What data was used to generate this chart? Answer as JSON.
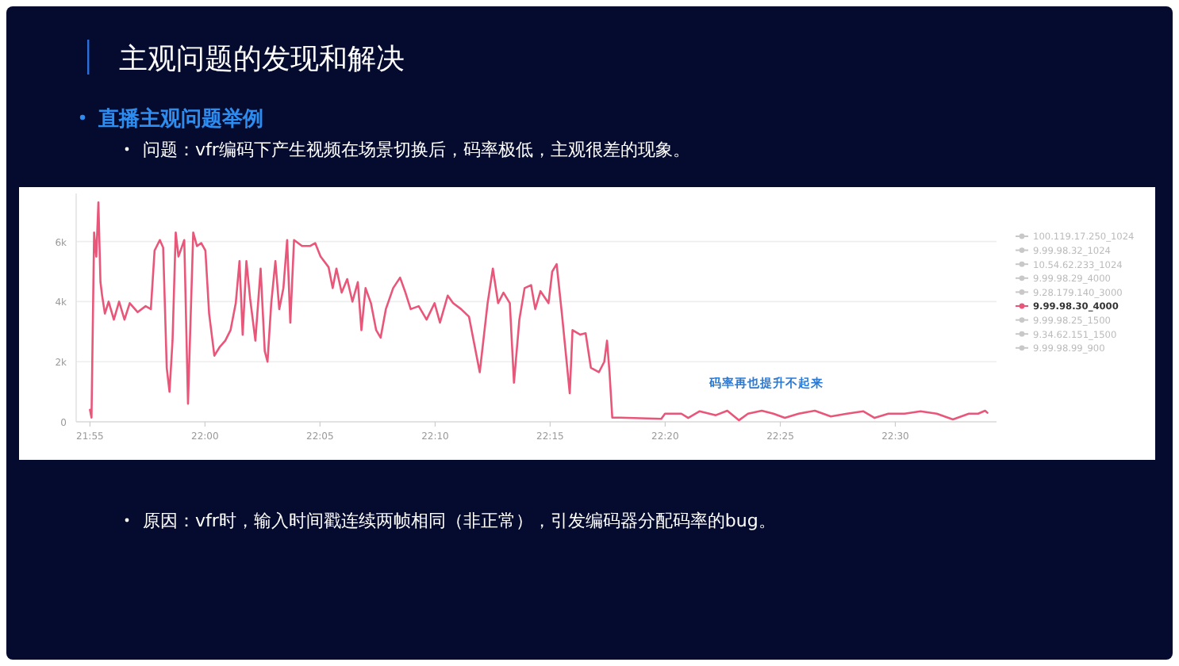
{
  "chart_data": {
    "type": "line",
    "title": "主观问题的发现和解决",
    "subtitle": "直播主观问题举例",
    "annotations": [
      "问题：vfr编码下产生视频在场景切换后，码率极低，主观很差的现象。",
      "码率再也提升不起来",
      "原因：vfr时，输入时间戳连续两帧相同（非正常），引发编码器分配码率的bug。"
    ],
    "x": [
      21.9167,
      21.9178,
      21.9197,
      21.9213,
      21.9228,
      21.9243,
      21.9255,
      21.9275,
      21.9302,
      21.934,
      21.9378,
      21.9417,
      21.9455,
      21.9512,
      21.957,
      21.9608,
      21.9635,
      21.9673,
      21.9697,
      21.9723,
      21.9743,
      21.9765,
      21.9788,
      21.9808,
      21.985,
      21.9877,
      21.9915,
      21.9942,
      21.9973,
      22.0003,
      22.003,
      22.0068,
      22.0108,
      22.0147,
      22.0185,
      22.0223,
      22.025,
      22.0273,
      22.03,
      22.0327,
      22.0365,
      22.0403,
      22.0433,
      22.0453,
      22.048,
      22.051,
      22.0538,
      22.0568,
      22.0595,
      22.0618,
      22.0645,
      22.0703,
      22.076,
      22.0798,
      22.0837,
      22.0895,
      22.0925,
      22.0952,
      22.099,
      22.103,
      22.1068,
      22.1107,
      22.1133,
      22.1163,
      22.1202,
      22.124,
      22.1272,
      22.131,
      22.1363,
      22.1413,
      22.1452,
      22.149,
      22.1548,
      22.1605,
      22.1663,
      22.1702,
      22.1758,
      22.1797,
      22.1855,
      22.1912,
      22.199,
      22.2047,
      22.2085,
      22.2123,
      22.2162,
      22.2208,
      22.2238,
      22.2277,
      22.2315,
      22.2362,
      22.2392,
      22.243,
      22.2488,
      22.2515,
      22.2547,
      22.2585,
      22.2642,
      22.2662,
      22.2718,
      22.2757,
      22.2795,
      22.2853,
      22.2892,
      22.2912,
      22.293,
      22.295,
      22.3007,
      22.3305,
      22.3332,
      22.345,
      22.35,
      22.3583,
      22.37,
      22.3783,
      22.3867,
      22.3933,
      22.4033,
      22.4117,
      22.42,
      22.43,
      22.4417,
      22.4533,
      22.465,
      22.4767,
      22.485,
      22.495,
      22.5067,
      22.5183,
      22.53,
      22.5417,
      22.5533,
      22.56,
      22.565,
      22.5667
    ],
    "series": [
      {
        "name": "100.119.17.250_1024",
        "color": "#c8c8c8",
        "values": [
          null,
          null,
          null,
          null,
          null,
          null,
          null,
          null,
          null,
          null,
          null,
          null,
          null,
          null,
          null,
          null,
          null,
          null,
          null,
          null,
          null,
          null,
          null,
          null,
          null,
          null,
          null,
          null,
          null,
          null,
          null,
          null,
          null,
          null,
          null,
          null,
          null,
          null,
          null,
          null,
          null,
          null,
          null,
          null,
          null,
          null,
          null,
          null,
          null,
          null,
          null,
          null,
          null,
          null,
          null,
          null,
          null,
          null,
          null,
          null,
          null,
          null,
          null,
          null,
          null,
          null,
          null,
          null,
          null,
          null,
          null,
          null,
          null,
          null,
          null,
          null,
          null,
          null,
          null,
          null,
          null,
          null,
          null,
          null,
          null,
          null,
          null,
          null,
          null,
          null,
          null,
          null,
          null,
          null,
          null,
          null,
          null,
          null,
          null,
          null,
          null,
          null,
          null,
          null,
          null,
          null,
          null,
          null,
          null,
          null,
          null,
          null,
          null,
          null,
          null,
          null,
          null,
          null,
          null,
          null,
          null,
          null,
          null,
          null,
          null,
          null,
          null,
          null,
          null,
          null,
          null,
          null,
          null,
          null
        ]
      },
      {
        "name": "9.99.98.32_1024",
        "color": "#c8c8c8",
        "values": [
          null,
          null,
          null,
          null,
          null,
          null,
          null,
          null,
          null,
          null,
          null,
          null,
          null,
          null,
          null,
          null,
          null,
          null,
          null,
          null,
          null,
          null,
          null,
          null,
          null,
          null,
          null,
          null,
          null,
          null,
          null,
          null,
          null,
          null,
          null,
          null,
          null,
          null,
          null,
          null,
          null,
          null,
          null,
          null,
          null,
          null,
          null,
          null,
          null,
          null,
          null,
          null,
          null,
          null,
          null,
          null,
          null,
          null,
          null,
          null,
          null,
          null,
          null,
          null,
          null,
          null,
          null,
          null,
          null,
          null,
          null,
          null,
          null,
          null,
          null,
          null,
          null,
          null,
          null,
          null,
          null,
          null,
          null,
          null,
          null,
          null,
          null,
          null,
          null,
          null,
          null,
          null,
          null,
          null,
          null,
          null,
          null,
          null,
          null,
          null,
          null,
          null,
          null,
          null,
          null,
          null,
          null,
          null,
          null,
          null,
          null,
          null,
          null,
          null,
          null,
          null,
          null,
          null,
          null,
          null,
          null,
          null,
          null,
          null,
          null,
          null,
          null,
          null,
          null,
          null,
          null,
          null,
          null,
          null
        ]
      },
      {
        "name": "10.54.62.233_1024",
        "color": "#c8c8c8",
        "values": [
          null,
          null,
          null,
          null,
          null,
          null,
          null,
          null,
          null,
          null,
          null,
          null,
          null,
          null,
          null,
          null,
          null,
          null,
          null,
          null,
          null,
          null,
          null,
          null,
          null,
          null,
          null,
          null,
          null,
          null,
          null,
          null,
          null,
          null,
          null,
          null,
          null,
          null,
          null,
          null,
          null,
          null,
          null,
          null,
          null,
          null,
          null,
          null,
          null,
          null,
          null,
          null,
          null,
          null,
          null,
          null,
          null,
          null,
          null,
          null,
          null,
          null,
          null,
          null,
          null,
          null,
          null,
          null,
          null,
          null,
          null,
          null,
          null,
          null,
          null,
          null,
          null,
          null,
          null,
          null,
          null,
          null,
          null,
          null,
          null,
          null,
          null,
          null,
          null,
          null,
          null,
          null,
          null,
          null,
          null,
          null,
          null,
          null,
          null,
          null,
          null,
          null,
          null,
          null,
          null,
          null,
          null,
          null,
          null,
          null,
          null,
          null,
          null,
          null,
          null,
          null,
          null,
          null,
          null,
          null,
          null,
          null,
          null,
          null,
          null,
          null,
          null,
          null,
          null,
          null,
          null,
          null,
          null,
          null
        ]
      },
      {
        "name": "9.99.98.29_4000",
        "color": "#c8c8c8",
        "values": [
          null,
          null,
          null,
          null,
          null,
          null,
          null,
          null,
          null,
          null,
          null,
          null,
          null,
          null,
          null,
          null,
          null,
          null,
          null,
          null,
          null,
          null,
          null,
          null,
          null,
          null,
          null,
          null,
          null,
          null,
          null,
          null,
          null,
          null,
          null,
          null,
          null,
          null,
          null,
          null,
          null,
          null,
          null,
          null,
          null,
          null,
          null,
          null,
          null,
          null,
          null,
          null,
          null,
          null,
          null,
          null,
          null,
          null,
          null,
          null,
          null,
          null,
          null,
          null,
          null,
          null,
          null,
          null,
          null,
          null,
          null,
          null,
          null,
          null,
          null,
          null,
          null,
          null,
          null,
          null,
          null,
          null,
          null,
          null,
          null,
          null,
          null,
          null,
          null,
          null,
          null,
          null,
          null,
          null,
          null,
          null,
          null,
          null,
          null,
          null,
          null,
          null,
          null,
          null,
          null,
          null,
          null,
          null,
          null,
          null,
          null,
          null,
          null,
          null,
          null,
          null,
          null,
          null,
          null,
          null,
          null,
          null,
          null,
          null,
          null,
          null,
          null,
          null,
          null,
          null,
          null,
          null,
          null,
          null
        ]
      },
      {
        "name": "9.28.179.140_3000",
        "color": "#c8c8c8",
        "values": [
          null,
          null,
          null,
          null,
          null,
          null,
          null,
          null,
          null,
          null,
          null,
          null,
          null,
          null,
          null,
          null,
          null,
          null,
          null,
          null,
          null,
          null,
          null,
          null,
          null,
          null,
          null,
          null,
          null,
          null,
          null,
          null,
          null,
          null,
          null,
          null,
          null,
          null,
          null,
          null,
          null,
          null,
          null,
          null,
          null,
          null,
          null,
          null,
          null,
          null,
          null,
          null,
          null,
          null,
          null,
          null,
          null,
          null,
          null,
          null,
          null,
          null,
          null,
          null,
          null,
          null,
          null,
          null,
          null,
          null,
          null,
          null,
          null,
          null,
          null,
          null,
          null,
          null,
          null,
          null,
          null,
          null,
          null,
          null,
          null,
          null,
          null,
          null,
          null,
          null,
          null,
          null,
          null,
          null,
          null,
          null,
          null,
          null,
          null,
          null,
          null,
          null,
          null,
          null,
          null,
          null,
          null,
          null,
          null,
          null,
          null,
          null,
          null,
          null,
          null,
          null,
          null,
          null,
          null,
          null,
          null,
          null,
          null,
          null,
          null,
          null,
          null,
          null,
          null,
          null,
          null,
          null,
          null,
          null
        ]
      },
      {
        "name": "9.99.98.30_4000",
        "color": "#e8577a",
        "values": [
          400,
          140,
          6300,
          5500,
          7300,
          4650,
          4200,
          3600,
          4000,
          3400,
          4000,
          3400,
          3950,
          3650,
          3850,
          3750,
          5700,
          6050,
          5800,
          1800,
          1000,
          2700,
          6300,
          5500,
          6050,
          600,
          6300,
          5850,
          5950,
          5700,
          3600,
          2200,
          2500,
          2700,
          3050,
          3950,
          5350,
          2900,
          5350,
          4100,
          2700,
          5100,
          2350,
          2000,
          3950,
          5350,
          3750,
          4450,
          6050,
          3300,
          6050,
          5850,
          5850,
          5950,
          5500,
          5150,
          4450,
          5100,
          4300,
          4750,
          4000,
          4650,
          3050,
          4450,
          3950,
          3050,
          2800,
          3750,
          4450,
          4800,
          4300,
          3750,
          3850,
          3400,
          3950,
          3300,
          4200,
          3950,
          3750,
          3500,
          1650,
          3950,
          5100,
          3950,
          4300,
          3950,
          1300,
          3400,
          4450,
          4550,
          3750,
          4350,
          3950,
          5000,
          5250,
          3600,
          950,
          3050,
          2900,
          2950,
          1800,
          1650,
          2000,
          2700,
          1650,
          140,
          140,
          100,
          270,
          270,
          130,
          350,
          220,
          370,
          50,
          270,
          370,
          270,
          130,
          270,
          370,
          180,
          270,
          350,
          130,
          270,
          270,
          350,
          270,
          80,
          270,
          270,
          370,
          300
        ]
      },
      {
        "name": "9.99.98.25_1500",
        "color": "#c8c8c8",
        "values": [
          null,
          null,
          null,
          null,
          null,
          null,
          null,
          null,
          null,
          null,
          null,
          null,
          null,
          null,
          null,
          null,
          null,
          null,
          null,
          null,
          null,
          null,
          null,
          null,
          null,
          null,
          null,
          null,
          null,
          null,
          null,
          null,
          null,
          null,
          null,
          null,
          null,
          null,
          null,
          null,
          null,
          null,
          null,
          null,
          null,
          null,
          null,
          null,
          null,
          null,
          null,
          null,
          null,
          null,
          null,
          null,
          null,
          null,
          null,
          null,
          null,
          null,
          null,
          null,
          null,
          null,
          null,
          null,
          null,
          null,
          null,
          null,
          null,
          null,
          null,
          null,
          null,
          null,
          null,
          null,
          null,
          null,
          null,
          null,
          null,
          null,
          null,
          null,
          null,
          null,
          null,
          null,
          null,
          null,
          null,
          null,
          null,
          null,
          null,
          null,
          null,
          null,
          null,
          null,
          null,
          null,
          null,
          null,
          null,
          null,
          null,
          null,
          null,
          null,
          null,
          null,
          null,
          null,
          null,
          null,
          null,
          null,
          null,
          null,
          null,
          null,
          null,
          null,
          null,
          null,
          null,
          null,
          null,
          null
        ]
      },
      {
        "name": "9.34.62.151_1500",
        "color": "#c8c8c8",
        "values": [
          null,
          null,
          null,
          null,
          null,
          null,
          null,
          null,
          null,
          null,
          null,
          null,
          null,
          null,
          null,
          null,
          null,
          null,
          null,
          null,
          null,
          null,
          null,
          null,
          null,
          null,
          null,
          null,
          null,
          null,
          null,
          null,
          null,
          null,
          null,
          null,
          null,
          null,
          null,
          null,
          null,
          null,
          null,
          null,
          null,
          null,
          null,
          null,
          null,
          null,
          null,
          null,
          null,
          null,
          null,
          null,
          null,
          null,
          null,
          null,
          null,
          null,
          null,
          null,
          null,
          null,
          null,
          null,
          null,
          null,
          null,
          null,
          null,
          null,
          null,
          null,
          null,
          null,
          null,
          null,
          null,
          null,
          null,
          null,
          null,
          null,
          null,
          null,
          null,
          null,
          null,
          null,
          null,
          null,
          null,
          null,
          null,
          null,
          null,
          null,
          null,
          null,
          null,
          null,
          null,
          null,
          null,
          null,
          null,
          null,
          null,
          null,
          null,
          null,
          null,
          null,
          null,
          null,
          null,
          null,
          null,
          null,
          null,
          null,
          null,
          null,
          null,
          null,
          null,
          null,
          null,
          null,
          null,
          null
        ]
      },
      {
        "name": "9.99.98.99_900",
        "color": "#c8c8c8",
        "values": [
          null,
          null,
          null,
          null,
          null,
          null,
          null,
          null,
          null,
          null,
          null,
          null,
          null,
          null,
          null,
          null,
          null,
          null,
          null,
          null,
          null,
          null,
          null,
          null,
          null,
          null,
          null,
          null,
          null,
          null,
          null,
          null,
          null,
          null,
          null,
          null,
          null,
          null,
          null,
          null,
          null,
          null,
          null,
          null,
          null,
          null,
          null,
          null,
          null,
          null,
          null,
          null,
          null,
          null,
          null,
          null,
          null,
          null,
          null,
          null,
          null,
          null,
          null,
          null,
          null,
          null,
          null,
          null,
          null,
          null,
          null,
          null,
          null,
          null,
          null,
          null,
          null,
          null,
          null,
          null,
          null,
          null,
          null,
          null,
          null,
          null,
          null,
          null,
          null,
          null,
          null,
          null,
          null,
          null,
          null,
          null,
          null,
          null,
          null,
          null,
          null,
          null,
          null,
          null,
          null,
          null,
          null,
          null,
          null,
          null,
          null,
          null,
          null,
          null,
          null,
          null,
          null,
          null,
          null,
          null,
          null,
          null,
          null,
          null,
          null,
          null,
          null,
          null,
          null,
          null,
          null,
          null,
          null,
          null
        ]
      }
    ],
    "xlim": [
      21.9067,
      22.5733
    ],
    "xticks": [
      {
        "value": 21.9167,
        "label": "21:55"
      },
      {
        "value": 22,
        "label": "22:00"
      },
      {
        "value": 22.0833,
        "label": "22:05"
      },
      {
        "value": 22.1667,
        "label": "22:10"
      },
      {
        "value": 22.25,
        "label": "22:15"
      },
      {
        "value": 22.3333,
        "label": "22:20"
      },
      {
        "value": 22.4167,
        "label": "22:25"
      },
      {
        "value": 22.5,
        "label": "22:30"
      }
    ],
    "ylim": [
      0,
      7600
    ],
    "yticks": [
      0,
      {
        "value": 2000,
        "label": "2k"
      },
      {
        "value": 4000,
        "label": "4k"
      },
      {
        "value": 6000,
        "label": "6k"
      }
    ],
    "grid": "y",
    "legend": "right"
  }
}
